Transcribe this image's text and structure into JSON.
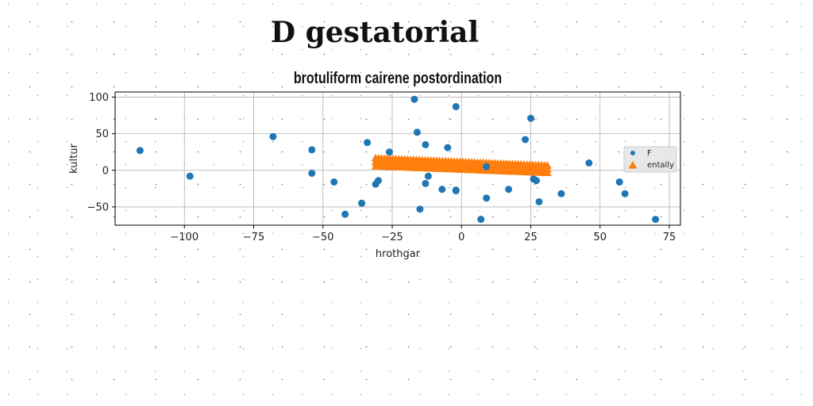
{
  "page": {
    "title": "D gestatorial"
  },
  "chart_data": {
    "type": "scatter",
    "title": "brotuliform cairene postordination",
    "xlabel": "hrothgar",
    "ylabel": "kultur",
    "xlim": [
      -125,
      79
    ],
    "ylim": [
      -75,
      107
    ],
    "xticks": [
      -100,
      -75,
      -50,
      -25,
      0,
      25,
      50,
      75
    ],
    "xtick_labels": [
      "−100",
      "−75",
      "−50",
      "−25",
      "0",
      "25",
      "50",
      "75"
    ],
    "yticks": [
      -50,
      0,
      50,
      100
    ],
    "ytick_labels": [
      "−50",
      "0",
      "50",
      "100"
    ],
    "grid": true,
    "legend_position": "right",
    "series": [
      {
        "name": "F",
        "marker": "circle",
        "color": "#1f77b4",
        "points": [
          [
            -116,
            27
          ],
          [
            -98,
            -8
          ],
          [
            -68,
            46
          ],
          [
            -54,
            28
          ],
          [
            -54,
            -4
          ],
          [
            -46,
            -16
          ],
          [
            -42,
            -60
          ],
          [
            -36,
            -45
          ],
          [
            -34,
            38
          ],
          [
            -31,
            -19
          ],
          [
            -30,
            -14
          ],
          [
            -26,
            25
          ],
          [
            -17,
            97
          ],
          [
            -16,
            52
          ],
          [
            -15,
            -53
          ],
          [
            -13,
            35
          ],
          [
            -13,
            -18
          ],
          [
            -12,
            -8
          ],
          [
            -7,
            -26
          ],
          [
            -5,
            31
          ],
          [
            -2,
            87
          ],
          [
            -2,
            -27
          ],
          [
            -2,
            -28
          ],
          [
            7,
            -67
          ],
          [
            9,
            -38
          ],
          [
            9,
            5
          ],
          [
            17,
            -26
          ],
          [
            23,
            42
          ],
          [
            25,
            71
          ],
          [
            26,
            -12
          ],
          [
            27,
            -14
          ],
          [
            28,
            -43
          ],
          [
            36,
            -32
          ],
          [
            46,
            10
          ],
          [
            57,
            -16
          ],
          [
            59,
            -32
          ],
          [
            70,
            -67
          ]
        ]
      },
      {
        "name": "entally",
        "marker": "triangle",
        "color": "#ff7f0e",
        "x_range": [
          -31,
          31
        ],
        "y_start": [
          5,
          16
        ],
        "y_end": [
          -4,
          6
        ],
        "count": 60
      }
    ]
  }
}
